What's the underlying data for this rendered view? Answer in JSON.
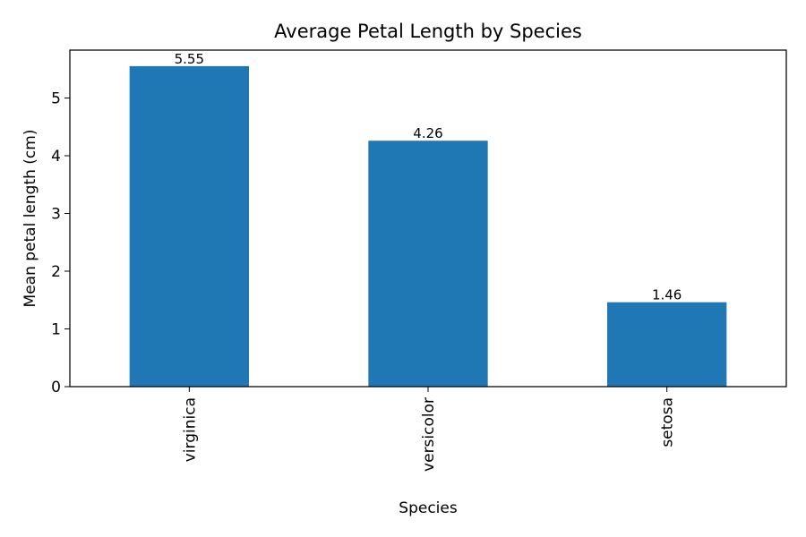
{
  "chart_data": {
    "type": "bar",
    "title": "Average Petal Length by Species",
    "xlabel": "Species",
    "ylabel": "Mean petal length (cm)",
    "categories": [
      "virginica",
      "versicolor",
      "setosa"
    ],
    "values": [
      5.552,
      4.26,
      1.462
    ],
    "data_labels": [
      "5.55",
      "4.26",
      "1.46"
    ],
    "ylim": [
      0,
      5.8296
    ],
    "yticks": [
      0,
      1,
      2,
      3,
      4,
      5
    ],
    "x_tick_rotation": "vertical",
    "grid": false,
    "legend": "none",
    "bar_color": "#1f77b4"
  }
}
